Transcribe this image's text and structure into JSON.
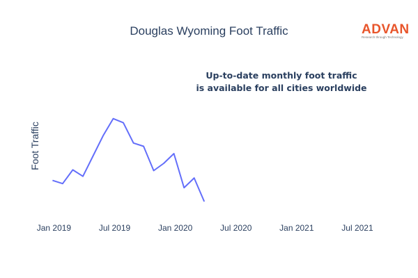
{
  "chart_data": {
    "type": "line",
    "title": "Douglas Wyoming Foot Traffic",
    "ylabel": "Foot Traffic",
    "xlabel": "",
    "x_ticks": [
      "Jan 2019",
      "Jul 2019",
      "Jan 2020",
      "Jul 2020",
      "Jan 2021",
      "Jul 2021"
    ],
    "x_range": [
      "2018-12",
      "2021-09"
    ],
    "y_ticks_shown": false,
    "grid": false,
    "series": [
      {
        "color": "#636efa",
        "points": [
          {
            "x": "2019-01",
            "y": 38
          },
          {
            "x": "2019-02",
            "y": 34
          },
          {
            "x": "2019-03",
            "y": 51
          },
          {
            "x": "2019-04",
            "y": 43
          },
          {
            "x": "2019-05",
            "y": 68
          },
          {
            "x": "2019-06",
            "y": 93
          },
          {
            "x": "2019-07",
            "y": 114
          },
          {
            "x": "2019-08",
            "y": 109
          },
          {
            "x": "2019-09",
            "y": 84
          },
          {
            "x": "2019-10",
            "y": 80
          },
          {
            "x": "2019-11",
            "y": 50
          },
          {
            "x": "2019-12",
            "y": 59
          },
          {
            "x": "2020-01",
            "y": 71
          },
          {
            "x": "2020-02",
            "y": 29
          },
          {
            "x": "2020-03",
            "y": 41
          },
          {
            "x": "2020-04",
            "y": 12
          }
        ]
      }
    ],
    "annotation": [
      "Up-to-date monthly foot traffic",
      "is available for all cities worldwide"
    ]
  },
  "logo": {
    "name": "ADVAN",
    "tagline": "Research through Technology",
    "color": "#e8552b"
  }
}
